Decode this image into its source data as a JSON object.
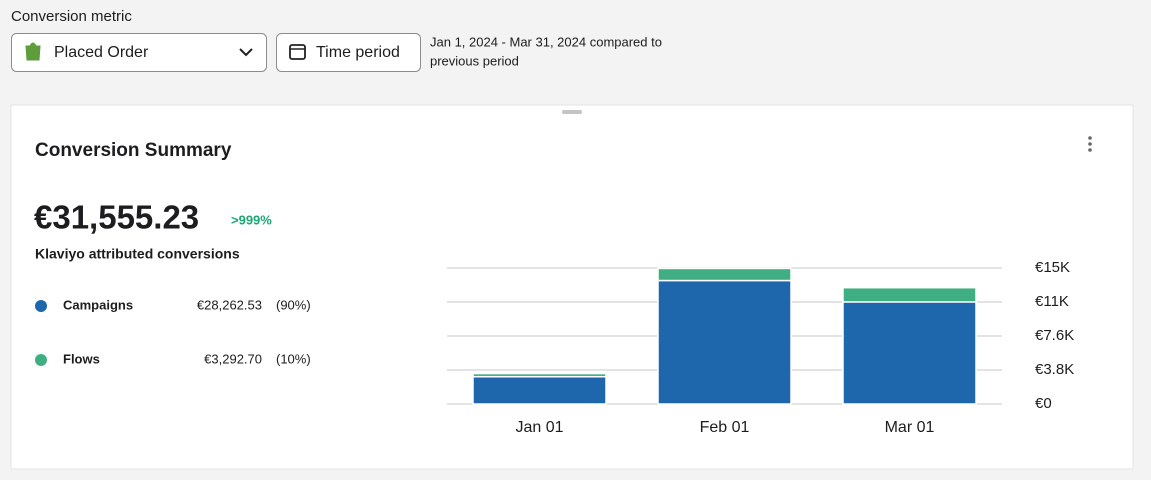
{
  "controls": {
    "metric_label": "Conversion metric",
    "metric": "Placed Order",
    "time_button": "Time period",
    "date_range_line1": "Jan 1, 2024 - Mar 31, 2024 compared to",
    "date_range_line2": "previous period"
  },
  "card": {
    "title": "Conversion Summary",
    "total": "€31,555.23",
    "change": ">999%",
    "subtitle": "Klaviyo attributed conversions",
    "rows": [
      {
        "amount": "€28,262.53",
        "share": "(90%)"
      },
      {
        "amount": "€3,292.70",
        "share": "(10%)"
      }
    ]
  },
  "chart_data": {
    "type": "stacked-bar",
    "categories": [
      "Jan 01",
      "Feb 01",
      "Mar 01"
    ],
    "series": [
      {
        "name": "Campaigns",
        "color": "#1f67ad",
        "values": [
          3050,
          13800,
          11410
        ]
      },
      {
        "name": "Flows",
        "color": "#3fae82",
        "values": [
          350,
          1350,
          1590
        ]
      }
    ],
    "ylim": [
      0,
      15200
    ],
    "yticks": [
      {
        "value": 0,
        "label": "€0"
      },
      {
        "value": 3800,
        "label": "€3.8K"
      },
      {
        "value": 7600,
        "label": "€7.6K"
      },
      {
        "value": 11400,
        "label": "€11K"
      },
      {
        "value": 15200,
        "label": "€15K"
      }
    ],
    "grid": true
  }
}
